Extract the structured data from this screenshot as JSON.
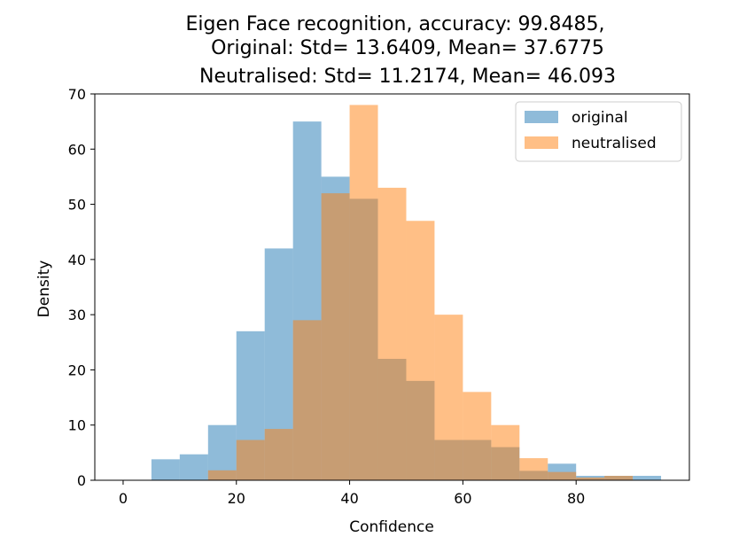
{
  "chart_data": {
    "type": "bar",
    "title_lines": [
      "Eigen Face recognition, accuracy: 99.8485,",
      "Original: Std= 13.6409, Mean= 37.6775",
      "Neutralised: Std= 11.2174, Mean= 46.093"
    ],
    "xlabel": "Confidence",
    "ylabel": "Density",
    "xlim": [
      -5,
      100
    ],
    "ylim": [
      0,
      70
    ],
    "x_ticks": [
      0,
      20,
      40,
      60,
      80
    ],
    "y_ticks": [
      0,
      10,
      20,
      30,
      40,
      50,
      60,
      70
    ],
    "grid": false,
    "legend_position": "top-right",
    "series": [
      {
        "name": "original",
        "color": "#1f77b4",
        "opacity": 0.5,
        "bins": [
          {
            "x0": 5,
            "x1": 10,
            "value": 3.8
          },
          {
            "x0": 10,
            "x1": 15,
            "value": 4.7
          },
          {
            "x0": 15,
            "x1": 20,
            "value": 10
          },
          {
            "x0": 20,
            "x1": 25,
            "value": 27
          },
          {
            "x0": 25,
            "x1": 30,
            "value": 42
          },
          {
            "x0": 30,
            "x1": 35,
            "value": 65
          },
          {
            "x0": 35,
            "x1": 40,
            "value": 55
          },
          {
            "x0": 40,
            "x1": 45,
            "value": 51
          },
          {
            "x0": 45,
            "x1": 50,
            "value": 22
          },
          {
            "x0": 50,
            "x1": 55,
            "value": 18
          },
          {
            "x0": 55,
            "x1": 60,
            "value": 7.3
          },
          {
            "x0": 60,
            "x1": 65,
            "value": 7.3
          },
          {
            "x0": 65,
            "x1": 70,
            "value": 6
          },
          {
            "x0": 70,
            "x1": 75,
            "value": 1.7
          },
          {
            "x0": 75,
            "x1": 80,
            "value": 3
          },
          {
            "x0": 80,
            "x1": 85,
            "value": 0.8
          },
          {
            "x0": 85,
            "x1": 90,
            "value": 0.8
          },
          {
            "x0": 90,
            "x1": 95,
            "value": 0.8
          }
        ]
      },
      {
        "name": "neutralised",
        "color": "#ff7f0e",
        "opacity": 0.5,
        "bins": [
          {
            "x0": 15,
            "x1": 20,
            "value": 1.8
          },
          {
            "x0": 20,
            "x1": 25,
            "value": 7.3
          },
          {
            "x0": 25,
            "x1": 30,
            "value": 9.3
          },
          {
            "x0": 30,
            "x1": 35,
            "value": 29
          },
          {
            "x0": 35,
            "x1": 40,
            "value": 52
          },
          {
            "x0": 40,
            "x1": 45,
            "value": 68
          },
          {
            "x0": 45,
            "x1": 50,
            "value": 53
          },
          {
            "x0": 50,
            "x1": 55,
            "value": 47
          },
          {
            "x0": 55,
            "x1": 60,
            "value": 30
          },
          {
            "x0": 60,
            "x1": 65,
            "value": 16
          },
          {
            "x0": 65,
            "x1": 70,
            "value": 10
          },
          {
            "x0": 70,
            "x1": 75,
            "value": 4
          },
          {
            "x0": 75,
            "x1": 80,
            "value": 1.5
          },
          {
            "x0": 80,
            "x1": 85,
            "value": 0.5
          },
          {
            "x0": 85,
            "x1": 90,
            "value": 0.8
          }
        ]
      }
    ]
  }
}
